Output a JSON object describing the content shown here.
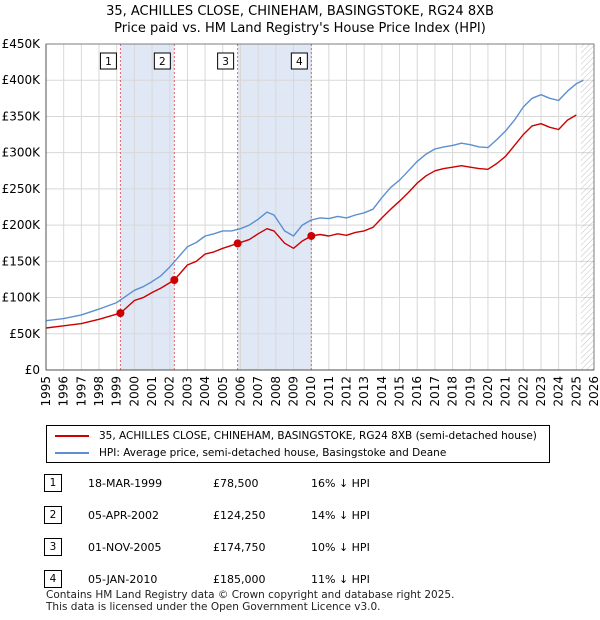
{
  "title_line1": "35, ACHILLES CLOSE, CHINEHAM, BASINGSTOKE, RG24 8XB",
  "title_line2": "Price paid vs. HM Land Registry's House Price Index (HPI)",
  "colors": {
    "property": "#cc0000",
    "hpi": "#5b8fd0",
    "event_line": "#e06666",
    "band": "#dde6f5"
  },
  "chart_data": {
    "type": "line",
    "title": "Price paid vs. HM Land Registry's House Price Index (HPI)",
    "xlabel": "",
    "ylabel": "",
    "xlim": [
      1995,
      2026
    ],
    "ylim": [
      0,
      450000
    ],
    "grid": true,
    "x_ticks": [
      1995,
      1996,
      1997,
      1998,
      1999,
      2000,
      2001,
      2002,
      2003,
      2004,
      2005,
      2006,
      2007,
      2008,
      2009,
      2010,
      2011,
      2012,
      2013,
      2014,
      2015,
      2016,
      2017,
      2018,
      2019,
      2020,
      2021,
      2022,
      2023,
      2024,
      2025,
      2026
    ],
    "y_ticks": [
      0,
      50000,
      100000,
      150000,
      200000,
      250000,
      300000,
      350000,
      400000,
      450000
    ],
    "y_tick_labels": [
      "£0",
      "£50K",
      "£100K",
      "£150K",
      "£200K",
      "£250K",
      "£300K",
      "£350K",
      "£400K",
      "£450K"
    ],
    "future_start": 2025.25,
    "series": [
      {
        "name": "35, ACHILLES CLOSE, CHINEHAM, BASINGSTOKE, RG24 8XB (semi-detached house)",
        "color": "#cc0000",
        "x": [
          1995.0,
          1996.0,
          1997.0,
          1998.0,
          1999.21,
          2000.0,
          2000.5,
          2001.0,
          2001.5,
          2002.26,
          2003.0,
          2003.5,
          2004.0,
          2004.5,
          2005.0,
          2005.84,
          2006.5,
          2007.0,
          2007.5,
          2007.9,
          2008.5,
          2009.0,
          2009.5,
          2010.01,
          2010.5,
          2011.0,
          2011.5,
          2012.0,
          2012.5,
          2013.0,
          2013.5,
          2014.0,
          2014.5,
          2015.0,
          2015.5,
          2016.0,
          2016.5,
          2017.0,
          2017.5,
          2018.0,
          2018.5,
          2019.0,
          2019.5,
          2020.0,
          2020.5,
          2021.0,
          2021.5,
          2022.0,
          2022.5,
          2023.0,
          2023.5,
          2024.0,
          2024.5,
          2025.0
        ],
        "values": [
          58000,
          61000,
          64000,
          70000,
          78500,
          96000,
          100000,
          107000,
          113000,
          124250,
          145000,
          150000,
          160000,
          163000,
          168000,
          174750,
          180000,
          188000,
          195000,
          192000,
          175000,
          168000,
          178000,
          185000,
          187000,
          185000,
          188000,
          186000,
          190000,
          192000,
          197000,
          210000,
          222000,
          233000,
          245000,
          258000,
          268000,
          275000,
          278000,
          280000,
          282000,
          280000,
          278000,
          277000,
          285000,
          295000,
          310000,
          325000,
          337000,
          340000,
          335000,
          332000,
          345000,
          352000
        ]
      },
      {
        "name": "HPI: Average price, semi-detached house, Basingstoke and Deane",
        "color": "#5b8fd0",
        "x": [
          1995.0,
          1996.0,
          1997.0,
          1998.0,
          1999.0,
          2000.0,
          2000.5,
          2001.0,
          2001.5,
          2002.0,
          2003.0,
          2003.5,
          2004.0,
          2004.5,
          2005.0,
          2005.5,
          2006.0,
          2006.5,
          2007.0,
          2007.5,
          2007.9,
          2008.5,
          2009.0,
          2009.5,
          2010.0,
          2010.5,
          2011.0,
          2011.5,
          2012.0,
          2012.5,
          2013.0,
          2013.5,
          2014.0,
          2014.5,
          2015.0,
          2015.5,
          2016.0,
          2016.5,
          2017.0,
          2017.5,
          2018.0,
          2018.5,
          2019.0,
          2019.5,
          2020.0,
          2020.5,
          2021.0,
          2021.5,
          2022.0,
          2022.5,
          2023.0,
          2023.5,
          2024.0,
          2024.5,
          2025.0,
          2025.4
        ],
        "values": [
          68000,
          71000,
          76000,
          84000,
          93000,
          110000,
          115000,
          122000,
          130000,
          142000,
          170000,
          176000,
          185000,
          188000,
          192000,
          192000,
          195000,
          200000,
          208000,
          218000,
          214000,
          192000,
          185000,
          200000,
          207000,
          210000,
          209000,
          212000,
          210000,
          214000,
          217000,
          222000,
          238000,
          252000,
          262000,
          275000,
          288000,
          298000,
          305000,
          308000,
          310000,
          313000,
          311000,
          308000,
          307000,
          318000,
          330000,
          345000,
          363000,
          375000,
          380000,
          375000,
          372000,
          385000,
          395000,
          400000
        ]
      }
    ],
    "sales": [
      {
        "label": "1",
        "x": 1999.21,
        "value": 78500
      },
      {
        "label": "2",
        "x": 2002.26,
        "value": 124250
      },
      {
        "label": "3",
        "x": 2005.84,
        "value": 174750
      },
      {
        "label": "4",
        "x": 2010.01,
        "value": 185000
      }
    ]
  },
  "legend": {
    "property": "35, ACHILLES CLOSE, CHINEHAM, BASINGSTOKE, RG24 8XB (semi-detached house)",
    "hpi": "HPI: Average price, semi-detached house, Basingstoke and Deane"
  },
  "sales_table": [
    {
      "num": "1",
      "date": "18-MAR-1999",
      "price": "£78,500",
      "hpi": "16% ↓ HPI"
    },
    {
      "num": "2",
      "date": "05-APR-2002",
      "price": "£124,250",
      "hpi": "14% ↓ HPI"
    },
    {
      "num": "3",
      "date": "01-NOV-2005",
      "price": "£174,750",
      "hpi": "10% ↓ HPI"
    },
    {
      "num": "4",
      "date": "05-JAN-2010",
      "price": "£185,000",
      "hpi": "11% ↓ HPI"
    }
  ],
  "footer_line1": "Contains HM Land Registry data © Crown copyright and database right 2025.",
  "footer_line2": "This data is licensed under the Open Government Licence v3.0."
}
